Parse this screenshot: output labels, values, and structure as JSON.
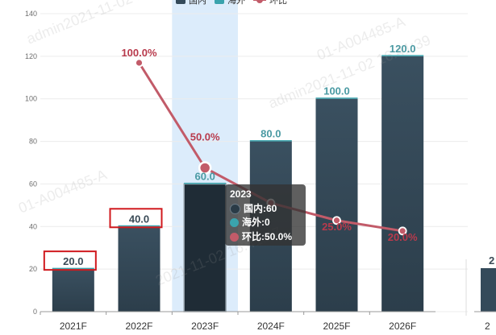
{
  "legend": {
    "domestic": "国内",
    "overseas": "海外",
    "yoy": "环比"
  },
  "colors": {
    "domestic": "#344a5a",
    "domestic_dark": "#1f2c36",
    "overseas": "#3aa3ad",
    "yoy_line": "#c25b69",
    "label_dark": "#3a4a56",
    "label_teal": "#4a9aa3",
    "label_red": "#b83a4c",
    "highlight_band": "#dcecfb",
    "annotation_box": "#d0191e"
  },
  "chart_data": {
    "type": "bar",
    "categories": [
      "2021F",
      "2022F",
      "2023F",
      "2024F",
      "2025F",
      "2026F"
    ],
    "series": [
      {
        "name": "国内",
        "values": [
          20,
          40,
          60,
          80,
          100,
          120
        ]
      },
      {
        "name": "海外",
        "values": [
          0,
          0,
          0,
          0,
          0,
          0
        ]
      },
      {
        "name": "环比",
        "type": "line",
        "values": [
          null,
          100.0,
          50.0,
          33.3,
          25.0,
          20.0
        ]
      }
    ],
    "bar_labels": [
      "20.0",
      "40.0",
      "60.0",
      "80.0",
      "100.0",
      "120.0"
    ],
    "line_labels": [
      "",
      "100.0%",
      "50.0%",
      "",
      "25.0%",
      "20.0%"
    ],
    "ylim": [
      0,
      140
    ],
    "yticks": [
      0,
      20,
      40,
      60,
      80,
      100,
      120,
      140
    ],
    "grid": true,
    "highlighted_category": "2023F",
    "annotated_categories": [
      "2021F",
      "2022F"
    ]
  },
  "tooltip": {
    "title": "2023",
    "rows": [
      {
        "label": "国内:60",
        "color": "#2a3b47"
      },
      {
        "label": "海外:0",
        "color": "#3aa3ad"
      },
      {
        "label": "环比:50.0%",
        "color": "#c25b69"
      }
    ]
  },
  "right_partial": {
    "label": "2",
    "axis_label": "2"
  },
  "watermarks": [
    "admin2021-11-02 16:41:39",
    "01-A004485-A",
    "2021-11-02 16:41:47"
  ]
}
